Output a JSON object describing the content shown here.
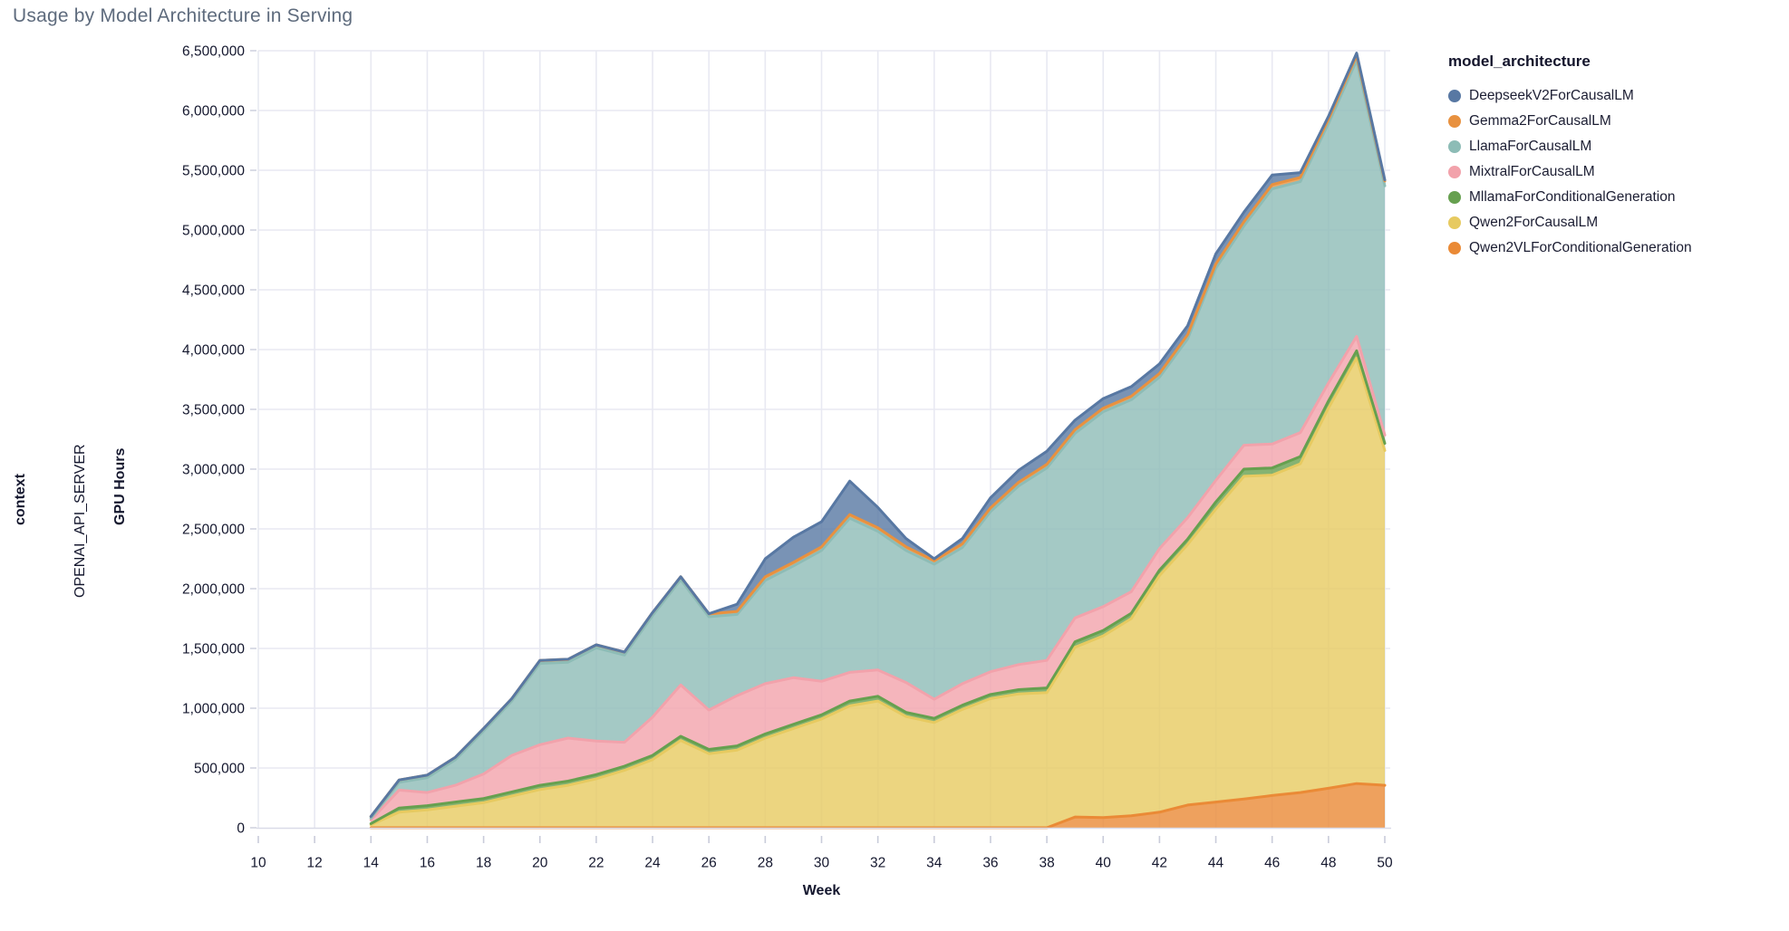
{
  "title": "Usage by Model Architecture in Serving",
  "facet": {
    "outer_label": "context",
    "inner_label": "OPENAI_API_SERVER"
  },
  "legend": {
    "title": "model_architecture",
    "items": [
      {
        "label": "DeepseekV2ForCausalLM",
        "color": "#5878a3"
      },
      {
        "label": "Gemma2ForCausalLM",
        "color": "#e8913f"
      },
      {
        "label": "LlamaForCausalLM",
        "color": "#8dbcb6"
      },
      {
        "label": "MixtralForCausalLM",
        "color": "#f2a2ab"
      },
      {
        "label": "MllamaForConditionalGeneration",
        "color": "#66a04f"
      },
      {
        "label": "Qwen2ForCausalLM",
        "color": "#e7ca60"
      },
      {
        "label": "Qwen2VLForConditionalGeneration",
        "color": "#ea8a36"
      }
    ]
  },
  "chart_data": {
    "type": "area",
    "stacked": true,
    "title": "Usage by Model Architecture in Serving",
    "xlabel": "Week",
    "ylabel": "GPU Hours",
    "xlim": [
      10,
      50
    ],
    "ylim": [
      0,
      6500000
    ],
    "x_tick_step": 2,
    "y_tick_step": 500000,
    "grid": true,
    "legend_position": "right",
    "x": [
      14,
      15,
      16,
      17,
      18,
      19,
      20,
      21,
      22,
      23,
      24,
      25,
      26,
      27,
      28,
      29,
      30,
      31,
      32,
      33,
      34,
      35,
      36,
      37,
      38,
      39,
      40,
      41,
      42,
      43,
      44,
      45,
      46,
      47,
      48,
      49,
      50
    ],
    "series": [
      {
        "name": "Qwen2VLForConditionalGeneration",
        "color": "#ea8a36",
        "values": [
          0,
          0,
          0,
          0,
          0,
          0,
          0,
          0,
          0,
          0,
          0,
          0,
          0,
          0,
          0,
          0,
          0,
          0,
          0,
          0,
          0,
          0,
          0,
          0,
          0,
          90000,
          85000,
          100000,
          130000,
          190000,
          215000,
          240000,
          270000,
          295000,
          330000,
          370000,
          355000
        ]
      },
      {
        "name": "Qwen2ForCausalLM",
        "color": "#e7ca60",
        "values": [
          25000,
          130000,
          150000,
          180000,
          210000,
          265000,
          320000,
          355000,
          410000,
          480000,
          570000,
          730000,
          620000,
          650000,
          750000,
          830000,
          910000,
          1020000,
          1060000,
          930000,
          880000,
          990000,
          1080000,
          1120000,
          1130000,
          1420000,
          1520000,
          1650000,
          1980000,
          2180000,
          2450000,
          2700000,
          2680000,
          2750000,
          3180000,
          3560000,
          2800000
        ]
      },
      {
        "name": "MllamaForConditionalGeneration",
        "color": "#66a04f",
        "values": [
          10000,
          35000,
          35000,
          35000,
          35000,
          35000,
          35000,
          35000,
          35000,
          35000,
          35000,
          35000,
          35000,
          35000,
          35000,
          35000,
          35000,
          40000,
          40000,
          35000,
          35000,
          35000,
          35000,
          35000,
          40000,
          45000,
          45000,
          45000,
          45000,
          45000,
          60000,
          60000,
          60000,
          60000,
          60000,
          60000,
          60000
        ]
      },
      {
        "name": "MixtralForCausalLM",
        "color": "#f2a2ab",
        "values": [
          30000,
          150000,
          110000,
          140000,
          205000,
          305000,
          340000,
          360000,
          280000,
          200000,
          320000,
          430000,
          330000,
          420000,
          420000,
          390000,
          280000,
          240000,
          220000,
          250000,
          160000,
          180000,
          190000,
          210000,
          230000,
          200000,
          200000,
          180000,
          180000,
          180000,
          180000,
          200000,
          200000,
          200000,
          150000,
          120000,
          70000
        ]
      },
      {
        "name": "LlamaForCausalLM",
        "color": "#8dbcb6",
        "values": [
          15000,
          65000,
          125000,
          215000,
          360000,
          455000,
          680000,
          635000,
          780000,
          730000,
          850000,
          880000,
          780000,
          680000,
          865000,
          935000,
          1095000,
          1290000,
          1160000,
          1105000,
          1130000,
          1140000,
          1340000,
          1495000,
          1610000,
          1545000,
          1630000,
          1605000,
          1435000,
          1495000,
          1775000,
          1835000,
          2135000,
          2100000,
          2170000,
          2310000,
          2085000
        ]
      },
      {
        "name": "Gemma2ForCausalLM",
        "color": "#e8913f",
        "values": [
          15000,
          20000,
          20000,
          20000,
          20000,
          20000,
          25000,
          25000,
          25000,
          25000,
          25000,
          25000,
          25000,
          25000,
          30000,
          30000,
          30000,
          30000,
          30000,
          30000,
          30000,
          30000,
          30000,
          30000,
          30000,
          30000,
          30000,
          30000,
          30000,
          35000,
          35000,
          35000,
          35000,
          35000,
          35000,
          40000,
          40000
        ]
      },
      {
        "name": "DeepseekV2ForCausalLM",
        "color": "#5878a3",
        "values": [
          0,
          0,
          0,
          0,
          0,
          0,
          0,
          0,
          0,
          0,
          0,
          0,
          0,
          60000,
          150000,
          210000,
          210000,
          280000,
          170000,
          70000,
          15000,
          45000,
          85000,
          100000,
          110000,
          80000,
          80000,
          80000,
          80000,
          75000,
          85000,
          80000,
          80000,
          40000,
          25000,
          20000,
          10000
        ]
      }
    ]
  }
}
